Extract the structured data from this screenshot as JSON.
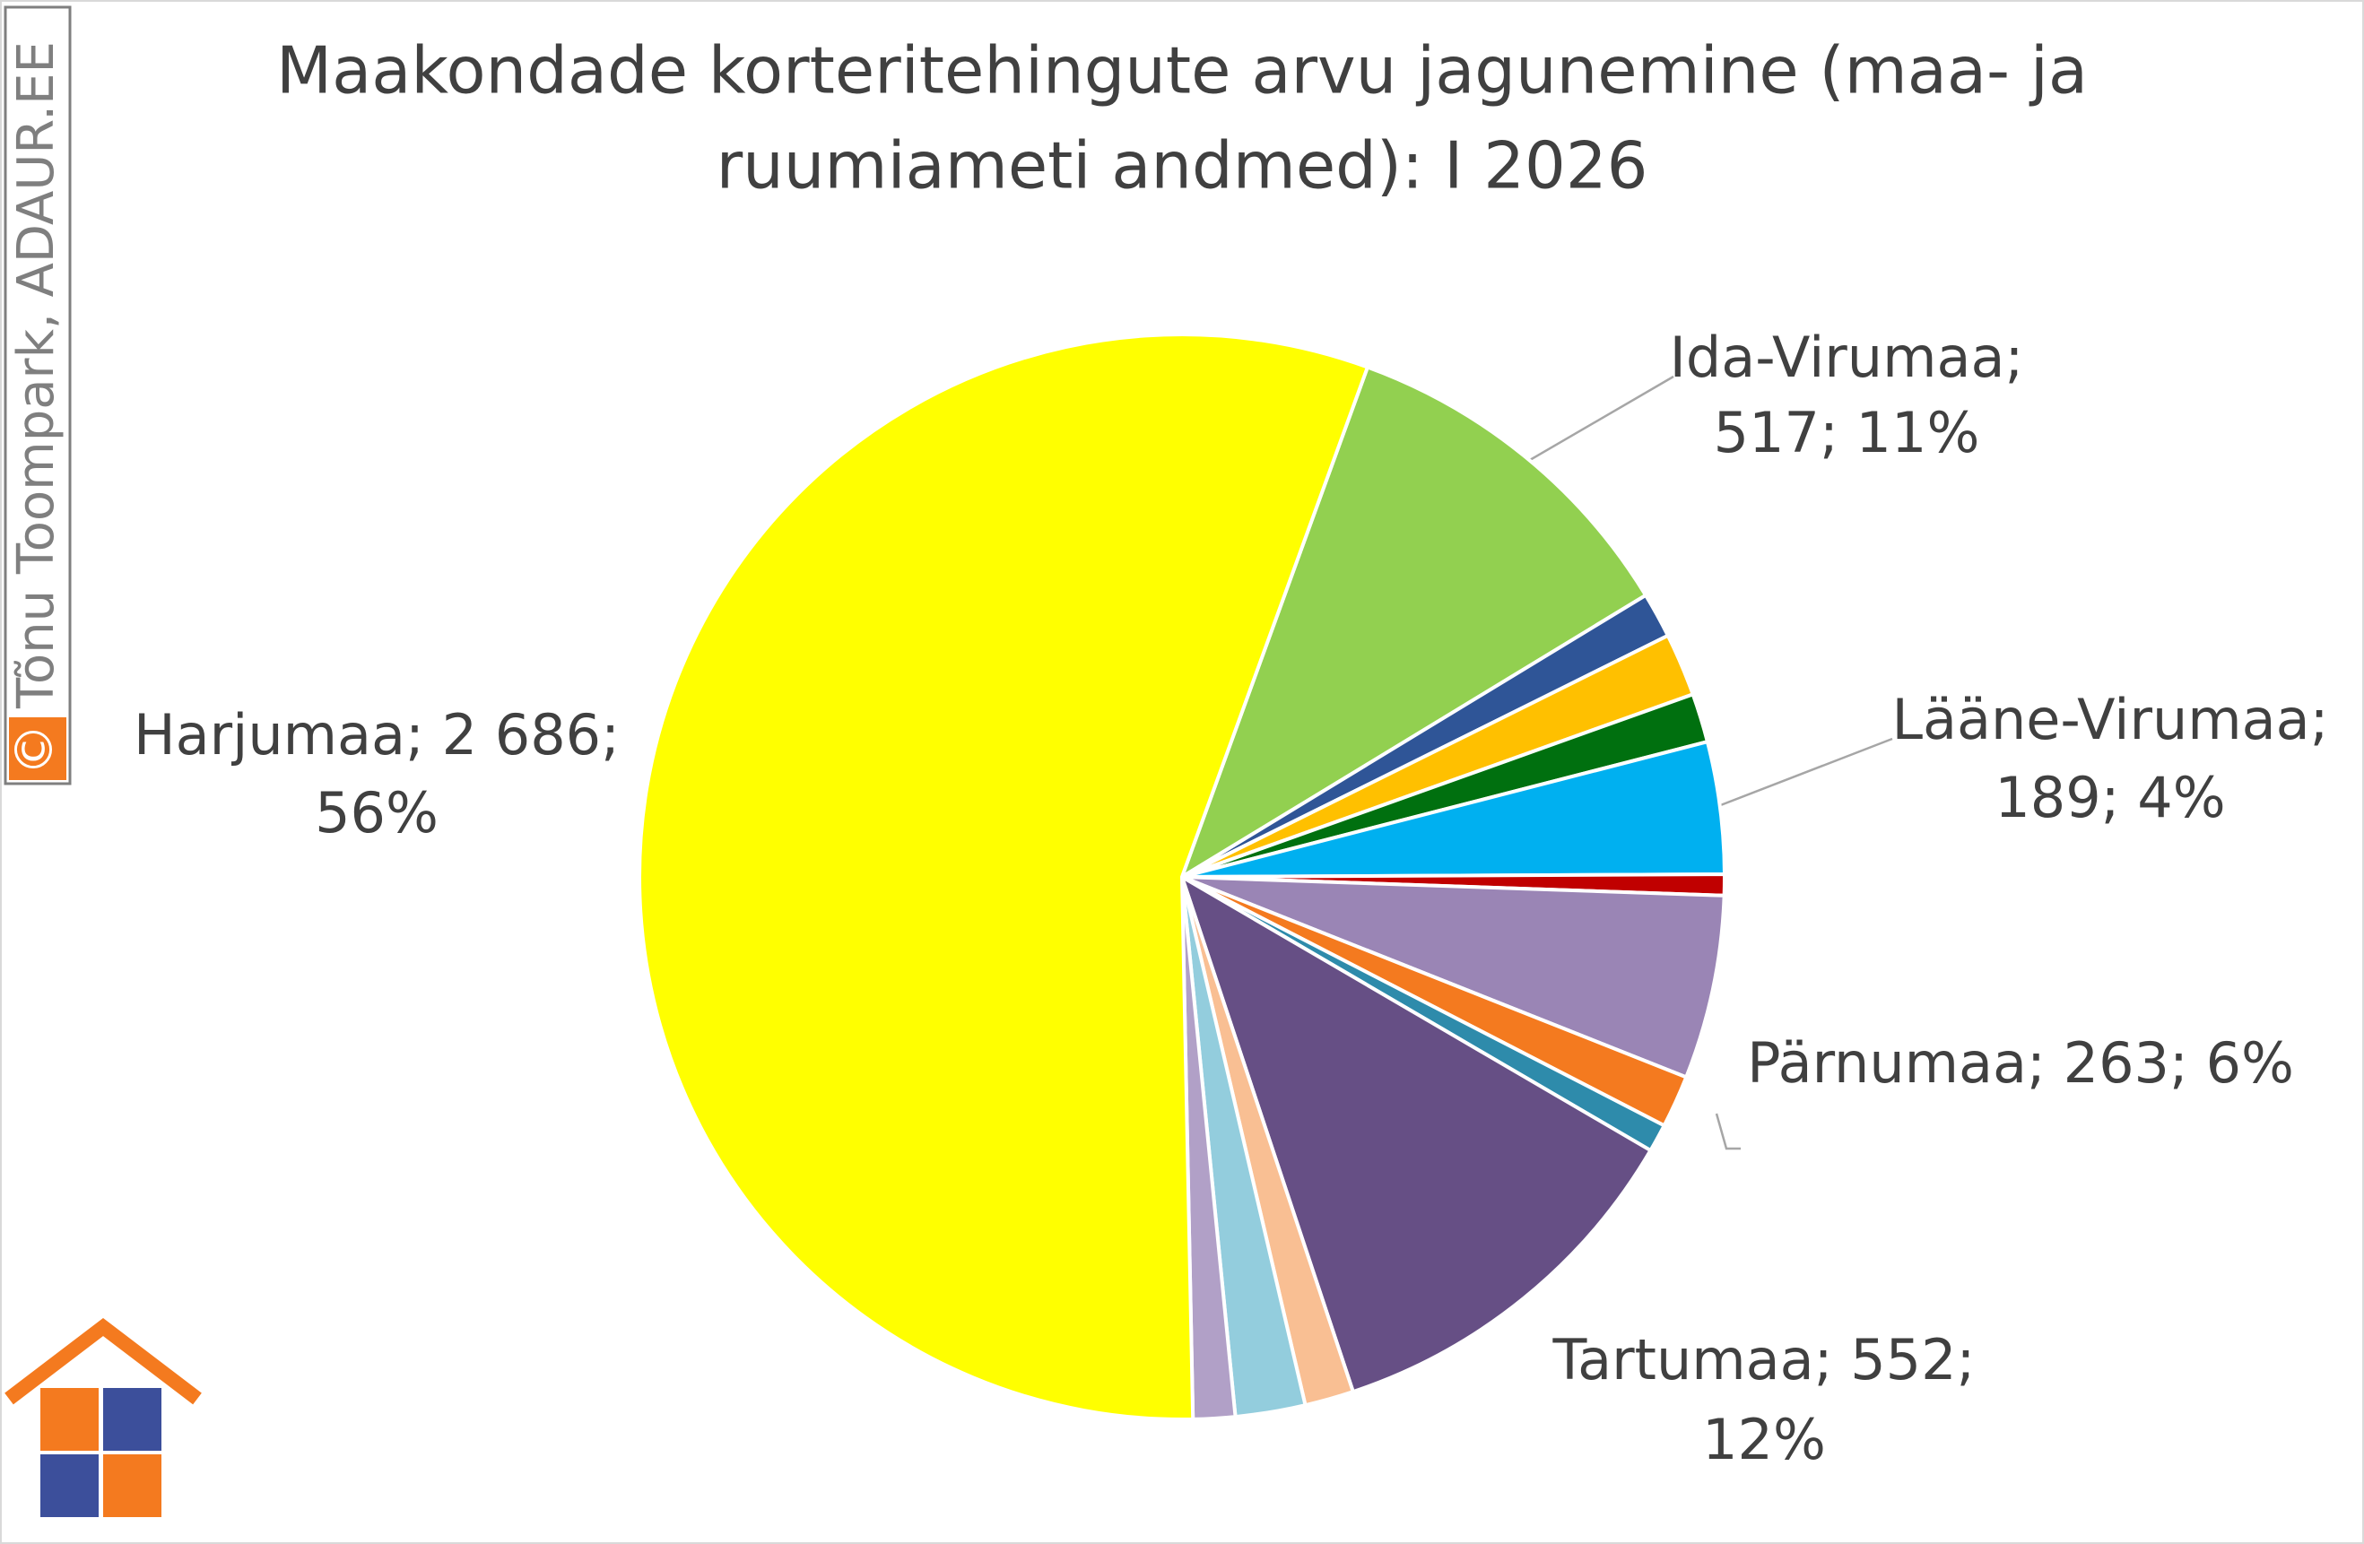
{
  "chart_data": {
    "type": "pie",
    "title": [
      "Maakondade korteritehingute arvu jagunemine (maa- ja",
      "ruumiameti andmed): I 2026"
    ],
    "values": [
      517,
      65,
      90,
      70,
      189,
      30,
      263,
      75,
      40,
      552,
      70,
      100,
      60,
      2686
    ],
    "colors": [
      "#92d050",
      "#2f5597",
      "#ffc000",
      "#00700f",
      "#00b0f0",
      "#c00000",
      "#9a85b5",
      "#f47a1f",
      "#2e8bab",
      "#664f85",
      "#f9bf93",
      "#93cddd",
      "#b1a0c7",
      "#ffff00"
    ],
    "labels": [
      [
        "Ida-Virumaa;",
        "517; 11%"
      ],
      null,
      null,
      null,
      [
        "Lääne-Virumaa;",
        "189; 4%"
      ],
      null,
      [
        "Pärnumaa; 263; 6%"
      ],
      null,
      null,
      [
        "Tartumaa; 552;",
        "12%"
      ],
      null,
      null,
      null,
      [
        "Harjumaa; 2 686;",
        "56%"
      ]
    ],
    "watermark": "Tõnu Toompark, ADAUR.EE",
    "watermark_symbol": "©"
  }
}
